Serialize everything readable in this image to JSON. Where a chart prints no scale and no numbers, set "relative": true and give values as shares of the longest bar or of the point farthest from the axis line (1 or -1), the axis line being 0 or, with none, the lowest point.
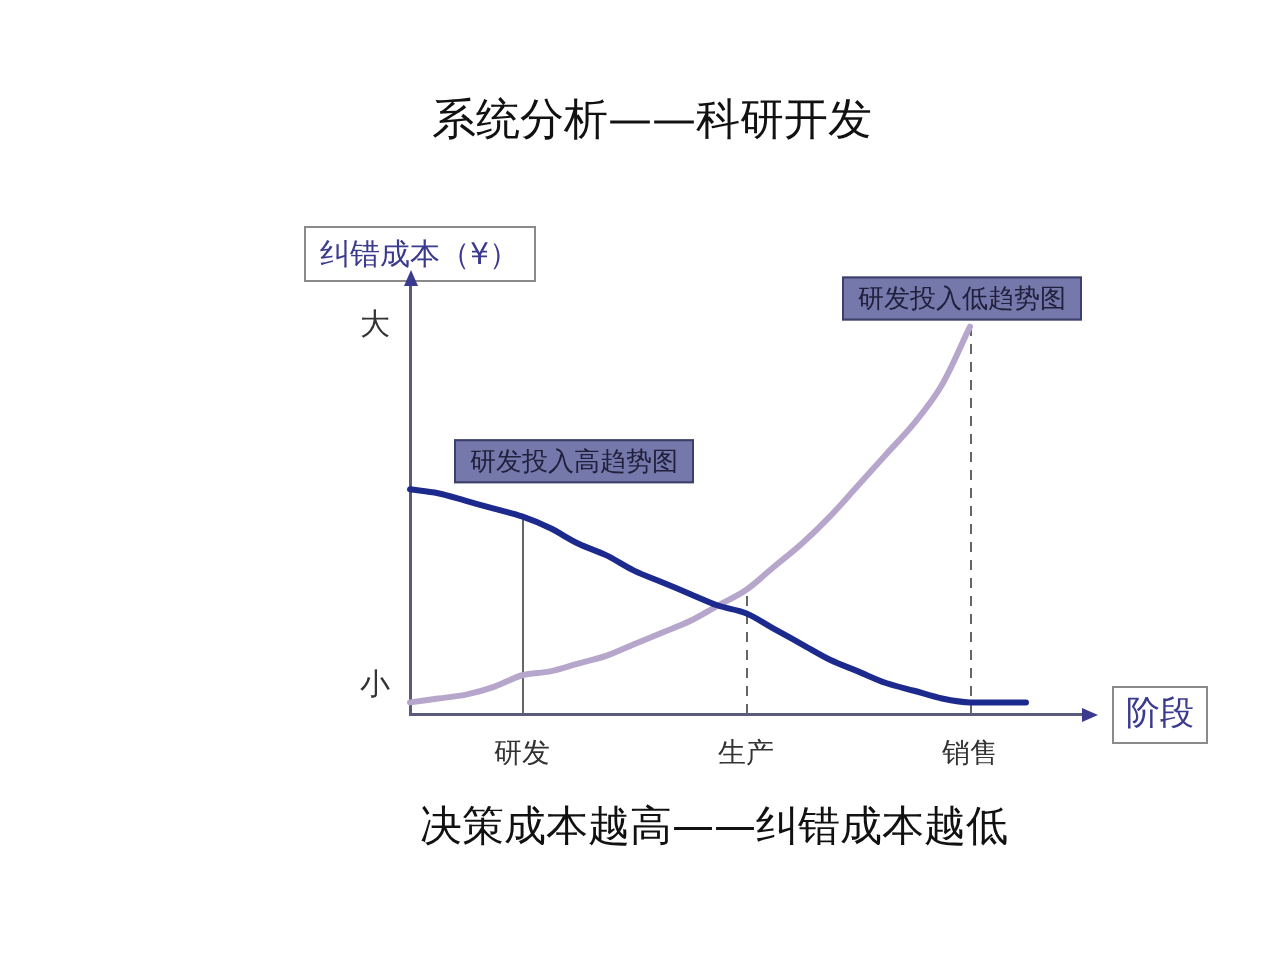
{
  "chart_data": {
    "type": "line",
    "title": "系统分析——科研开发",
    "xlabel": "阶段",
    "ylabel": "纠错成本（¥）",
    "relative": true,
    "marker": "none",
    "categories": [
      null,
      null,
      null,
      null,
      "研发",
      null,
      null,
      null,
      null,
      null,
      null,
      null,
      "生产",
      null,
      null,
      null,
      null,
      null,
      null,
      null,
      "销售",
      null,
      null,
      null,
      null
    ],
    "series": [
      {
        "name": "研发投入高趋势图",
        "color": "#1c2a8e",
        "values": [
          0.58,
          0.57,
          0.55,
          0.53,
          0.51,
          0.48,
          0.44,
          0.41,
          0.37,
          0.34,
          0.31,
          0.28,
          0.26,
          0.22,
          0.18,
          0.14,
          0.11,
          0.08,
          0.06,
          0.04,
          0.03,
          0.03,
          0.03,
          null,
          null
        ]
      },
      {
        "name": "研发投入低趋势图",
        "color": "#b7a6cc",
        "values": [
          0.03,
          0.04,
          0.05,
          0.07,
          0.1,
          0.11,
          0.13,
          0.15,
          0.18,
          0.21,
          0.24,
          0.28,
          0.32,
          0.38,
          0.44,
          0.51,
          0.59,
          0.67,
          0.75,
          0.85,
          1,
          null,
          null,
          null,
          null
        ]
      }
    ],
    "ref_lines": [
      {
        "axis": "x",
        "value": "研发",
        "line_style": "solid"
      },
      {
        "axis": "x",
        "value": "生产",
        "line_style": "dashed"
      },
      {
        "axis": "x",
        "value": "销售",
        "line_style": "dashed"
      }
    ],
    "annotations": [
      "大",
      "小",
      "决策成本越高——纠错成本越低"
    ]
  }
}
